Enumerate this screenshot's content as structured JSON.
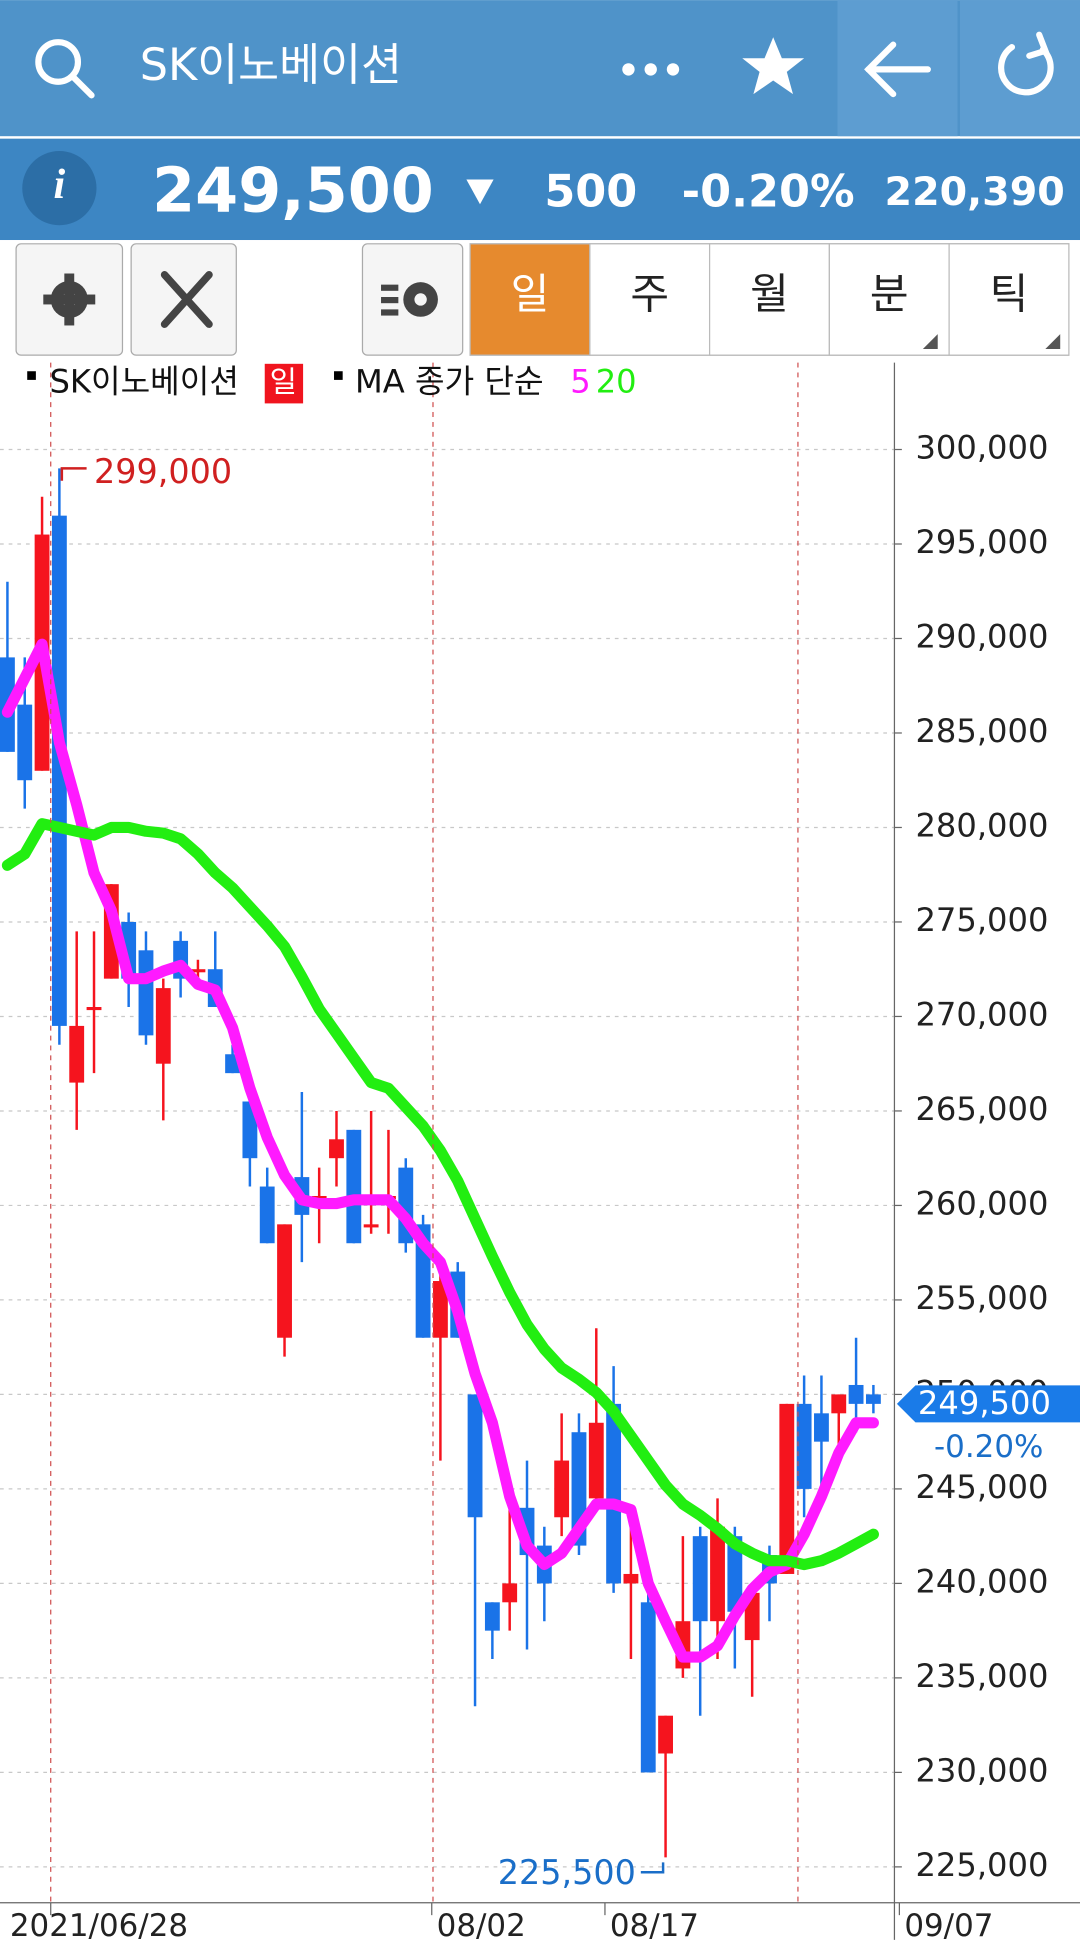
{
  "app_bar": {
    "title": "SK이노베이션"
  },
  "quote": {
    "price": "249,500",
    "change": "500",
    "rate": "-0.20%",
    "volume": "220,390"
  },
  "toolbar": {
    "tabs": [
      "일",
      "주",
      "월",
      "분",
      "틱"
    ]
  },
  "chart_data": {
    "type": "candlestick",
    "name": "SK이노베이션",
    "period": "일",
    "up_color": "#f5141e",
    "down_color": "#1a73e8",
    "open": [
      289000,
      286500,
      283000,
      296500,
      266500,
      270500,
      272000,
      275000,
      273500,
      267500,
      274000,
      272500,
      272500,
      268000,
      265500,
      261000,
      253000,
      261500,
      260500,
      262500,
      264000,
      259000,
      260500,
      262000,
      259000,
      253000,
      256500,
      250000,
      239000,
      239000,
      244000,
      242000,
      243500,
      248000,
      244500,
      249500,
      240000,
      239000,
      231000,
      235500,
      242500,
      238000,
      242500,
      237000,
      241500,
      240500,
      249500,
      249000,
      249000,
      250500,
      250000
    ],
    "high": [
      293000,
      289000,
      297500,
      299000,
      274500,
      274500,
      277000,
      275500,
      274500,
      272000,
      274500,
      273000,
      274500,
      268500,
      266000,
      262000,
      259000,
      266000,
      262000,
      265000,
      264000,
      265000,
      264000,
      262500,
      259500,
      256500,
      257000,
      250000,
      239000,
      244500,
      246500,
      243000,
      249000,
      249000,
      253500,
      251500,
      243500,
      239500,
      233000,
      242500,
      243000,
      244500,
      243000,
      240000,
      242000,
      249500,
      251000,
      251000,
      250000,
      253000,
      250500
    ],
    "low": [
      284000,
      281000,
      283000,
      268500,
      264000,
      267000,
      272000,
      270500,
      268500,
      264500,
      271000,
      271500,
      270500,
      267000,
      261000,
      258000,
      252000,
      257000,
      258000,
      261000,
      258000,
      258500,
      258500,
      257500,
      253000,
      246500,
      253000,
      233500,
      236000,
      237500,
      236500,
      238000,
      242500,
      241500,
      244000,
      239500,
      236000,
      230000,
      225500,
      235000,
      233000,
      236000,
      235500,
      234000,
      238000,
      240500,
      243500,
      245000,
      247000,
      248000,
      249000
    ],
    "close": [
      284000,
      282500,
      295500,
      269500,
      269500,
      270500,
      277000,
      272000,
      269000,
      271500,
      272000,
      272500,
      270500,
      267000,
      262500,
      258000,
      259000,
      259500,
      260500,
      263500,
      258000,
      259000,
      260500,
      258000,
      253000,
      256000,
      253000,
      243500,
      237500,
      240000,
      241500,
      240000,
      246500,
      242000,
      248500,
      240000,
      240500,
      230000,
      233000,
      238000,
      238000,
      243000,
      238500,
      239500,
      240000,
      249500,
      245000,
      247500,
      250000,
      249500,
      249500
    ],
    "moving_averages": {
      "label": "MA 종가 단순",
      "series": [
        {
          "name": "5",
          "color": "#ff1aff",
          "values": [
            286100,
            287900,
            289700,
            284500,
            281200,
            277600,
            275600,
            272000,
            272000,
            272400,
            272700,
            271700,
            271400,
            269400,
            266200,
            263600,
            261600,
            260300,
            260100,
            260100,
            260300,
            260300,
            260300,
            259300,
            258000,
            257000,
            254400,
            251100,
            248500,
            244600,
            242000,
            241000,
            241600,
            242900,
            244200,
            244200,
            243900,
            240000,
            238000,
            236100,
            236100,
            236700,
            238300,
            239700,
            240600,
            241000,
            242600,
            244600,
            246900,
            248500,
            248500
          ]
        },
        {
          "name": "20",
          "color": "#22ee11",
          "values": [
            278000,
            278600,
            280200,
            280000,
            279800,
            279600,
            280000,
            280000,
            279800,
            279700,
            279400,
            278600,
            277600,
            276800,
            275800,
            274800,
            273700,
            272100,
            270400,
            269100,
            267800,
            266500,
            266200,
            265200,
            264200,
            262900,
            261300,
            259300,
            257300,
            255400,
            253700,
            252400,
            251400,
            250800,
            250100,
            249100,
            247800,
            246500,
            245200,
            244200,
            243600,
            242900,
            242100,
            241600,
            241200,
            241200,
            241000,
            241200,
            241600,
            242100,
            242600
          ]
        }
      ]
    },
    "ylim": [
      223100,
      304600
    ],
    "yticks": [
      {
        "value": 225000,
        "label": "225,000"
      },
      {
        "value": 230000,
        "label": "230,000"
      },
      {
        "value": 235000,
        "label": "235,000"
      },
      {
        "value": 240000,
        "label": "240,000"
      },
      {
        "value": 245000,
        "label": "245,000"
      },
      {
        "value": 250000,
        "label": "250,000"
      },
      {
        "value": 255000,
        "label": "255,000"
      },
      {
        "value": 260000,
        "label": "260,000"
      },
      {
        "value": 265000,
        "label": "265,000"
      },
      {
        "value": 270000,
        "label": "270,000"
      },
      {
        "value": 275000,
        "label": "275,000"
      },
      {
        "value": 280000,
        "label": "280,000"
      },
      {
        "value": 285000,
        "label": "285,000"
      },
      {
        "value": 290000,
        "label": "290,000"
      },
      {
        "value": 295000,
        "label": "295,000"
      },
      {
        "value": 300000,
        "label": "300,000"
      }
    ],
    "xticks": [
      {
        "value": 3,
        "label": "2021/06/28"
      },
      {
        "value": 25,
        "label": "08/02"
      },
      {
        "value": 35,
        "label": "08/17"
      },
      {
        "value": 52,
        "label": "09/07"
      }
    ],
    "grid": true,
    "high_label": {
      "text": "299,000",
      "value": 299000
    },
    "low_label": {
      "text": "225,500",
      "value": 225500
    },
    "last_price": {
      "text": "249,500",
      "value": 249500
    },
    "last_change": "-0.20%"
  }
}
